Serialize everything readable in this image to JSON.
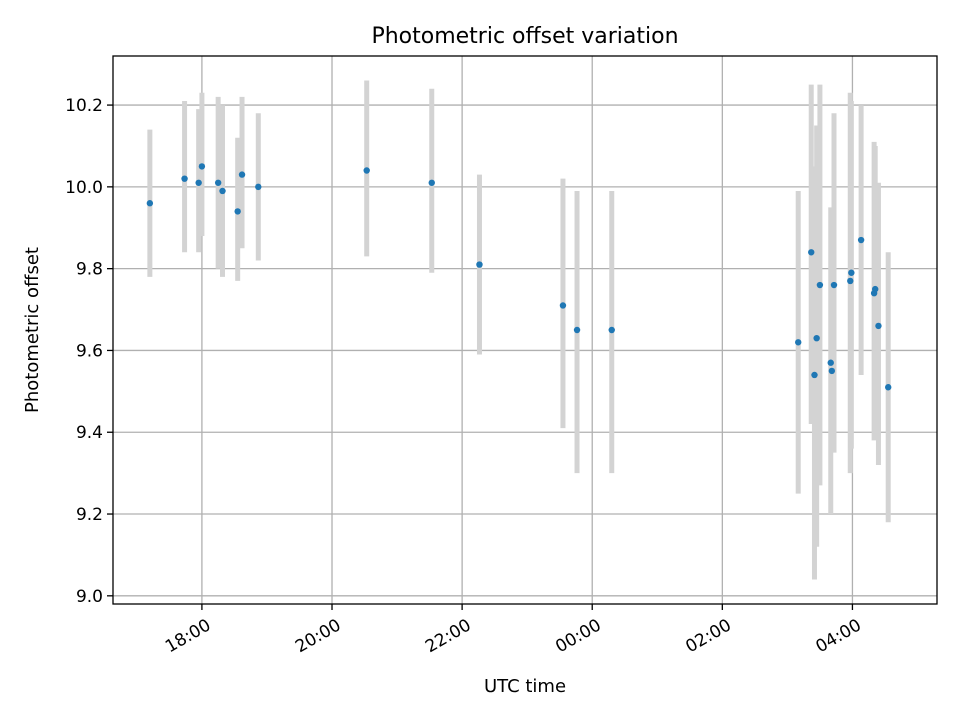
{
  "chart_data": {
    "type": "scatter",
    "title": "Photometric offset variation",
    "xlabel": "UTC time",
    "ylabel": "Photometric offset",
    "x_ticks": [
      "18:00",
      "20:00",
      "22:00",
      "00:00",
      "02:00",
      "04:00"
    ],
    "y_ticks": [
      "9.0",
      "9.2",
      "9.4",
      "9.6",
      "9.8",
      "10.0",
      "10.2"
    ],
    "xlim": [
      "16:38",
      "05:18"
    ],
    "ylim": [
      8.98,
      10.32
    ],
    "grid": true,
    "legend": "none",
    "colors": {
      "point": "#1f77b4",
      "errorbar": "#d3d3d3"
    },
    "series": [
      {
        "points": [
          {
            "x": "17:12",
            "y": 9.96,
            "ymin": 9.78,
            "ymax": 10.14
          },
          {
            "x": "17:44",
            "y": 10.02,
            "ymin": 9.84,
            "ymax": 10.21
          },
          {
            "x": "17:57",
            "y": 10.01,
            "ymin": 9.84,
            "ymax": 10.19
          },
          {
            "x": "18:00",
            "y": 10.05,
            "ymin": 9.88,
            "ymax": 10.23
          },
          {
            "x": "18:15",
            "y": 10.01,
            "ymin": 9.8,
            "ymax": 10.22
          },
          {
            "x": "18:19",
            "y": 9.99,
            "ymin": 9.78,
            "ymax": 10.2
          },
          {
            "x": "18:33",
            "y": 9.94,
            "ymin": 9.77,
            "ymax": 10.12
          },
          {
            "x": "18:37",
            "y": 10.03,
            "ymin": 9.85,
            "ymax": 10.22
          },
          {
            "x": "18:52",
            "y": 10.0,
            "ymin": 9.82,
            "ymax": 10.18
          },
          {
            "x": "20:32",
            "y": 10.04,
            "ymin": 9.83,
            "ymax": 10.26
          },
          {
            "x": "21:32",
            "y": 10.01,
            "ymin": 9.79,
            "ymax": 10.24
          },
          {
            "x": "22:16",
            "y": 9.81,
            "ymin": 9.59,
            "ymax": 10.03
          },
          {
            "x": "23:33",
            "y": 9.71,
            "ymin": 9.41,
            "ymax": 10.02
          },
          {
            "x": "23:46",
            "y": 9.65,
            "ymin": 9.3,
            "ymax": 9.99
          },
          {
            "x": "00:18",
            "y": 9.65,
            "ymin": 9.3,
            "ymax": 9.99
          },
          {
            "x": "03:10",
            "y": 9.62,
            "ymin": 9.25,
            "ymax": 9.99
          },
          {
            "x": "03:22",
            "y": 9.84,
            "ymin": 9.42,
            "ymax": 10.25
          },
          {
            "x": "03:25",
            "y": 9.54,
            "ymin": 9.04,
            "ymax": 10.05
          },
          {
            "x": "03:27",
            "y": 9.63,
            "ymin": 9.12,
            "ymax": 10.15
          },
          {
            "x": "03:30",
            "y": 9.76,
            "ymin": 9.27,
            "ymax": 10.25
          },
          {
            "x": "03:40",
            "y": 9.57,
            "ymin": 9.2,
            "ymax": 9.95
          },
          {
            "x": "03:41",
            "y": 9.55,
            "ymin": 9.36,
            "ymax": 9.74
          },
          {
            "x": "03:43",
            "y": 9.76,
            "ymin": 9.35,
            "ymax": 10.18
          },
          {
            "x": "03:58",
            "y": 9.77,
            "ymin": 9.3,
            "ymax": 10.23
          },
          {
            "x": "03:59",
            "y": 9.79,
            "ymin": 9.36,
            "ymax": 10.21
          },
          {
            "x": "04:08",
            "y": 9.87,
            "ymin": 9.54,
            "ymax": 10.2
          },
          {
            "x": "04:20",
            "y": 9.74,
            "ymin": 9.38,
            "ymax": 10.11
          },
          {
            "x": "04:21",
            "y": 9.75,
            "ymin": 9.4,
            "ymax": 10.1
          },
          {
            "x": "04:24",
            "y": 9.66,
            "ymin": 9.32,
            "ymax": 10.01
          },
          {
            "x": "04:33",
            "y": 9.51,
            "ymin": 9.18,
            "ymax": 9.84
          }
        ]
      }
    ]
  }
}
